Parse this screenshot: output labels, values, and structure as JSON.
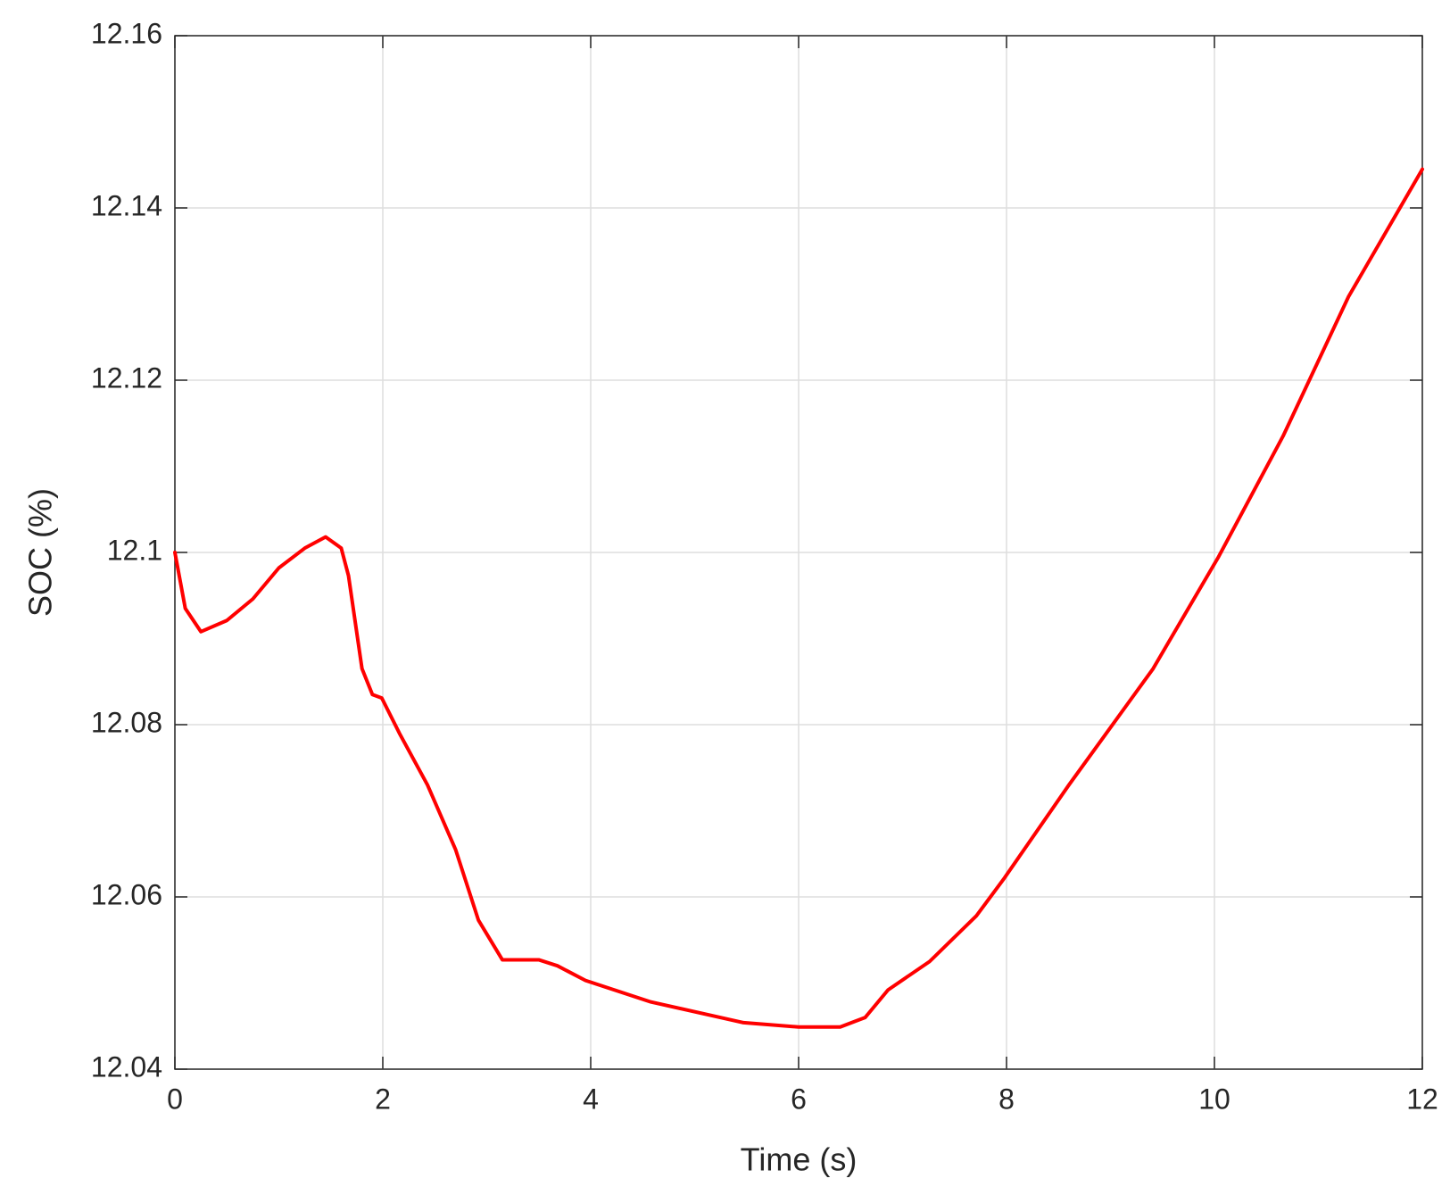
{
  "chart_data": {
    "type": "line",
    "x_label": "Time (s)",
    "y_label": "SOC (%)",
    "x": [
      0,
      0.1,
      0.25,
      0.5,
      0.75,
      1.0,
      1.25,
      1.45,
      1.6,
      1.67,
      1.8,
      1.9,
      1.99,
      2.16,
      2.43,
      2.7,
      2.92,
      3.15,
      3.5,
      3.68,
      3.95,
      4.58,
      5.47,
      6.0,
      6.4,
      6.64,
      6.86,
      7.26,
      7.71,
      7.98,
      8.6,
      9.41,
      10.04,
      10.66,
      11.29,
      12
    ],
    "series": [
      {
        "name": "SOC",
        "color": "#ff0000",
        "values": [
          12.1,
          12.0935,
          12.0908,
          12.0921,
          12.0946,
          12.0982,
          12.1005,
          12.1018,
          12.1005,
          12.0973,
          12.0865,
          12.0835,
          12.0831,
          12.079,
          12.073,
          12.0655,
          12.0573,
          12.0527,
          12.0527,
          12.052,
          12.0503,
          12.0478,
          12.0454,
          12.0449,
          12.0449,
          12.046,
          12.0492,
          12.0525,
          12.0578,
          12.0622,
          12.073,
          12.0865,
          12.0995,
          12.1135,
          12.1297,
          12.1445
        ]
      }
    ],
    "xlim": [
      0,
      12
    ],
    "xticks": [
      0,
      2,
      4,
      6,
      8,
      10,
      12
    ],
    "ylim": [
      12.04,
      12.16
    ],
    "yticks": [
      12.04,
      12.06,
      12.08,
      12.1,
      12.12,
      12.14,
      12.16
    ],
    "grid": true
  }
}
